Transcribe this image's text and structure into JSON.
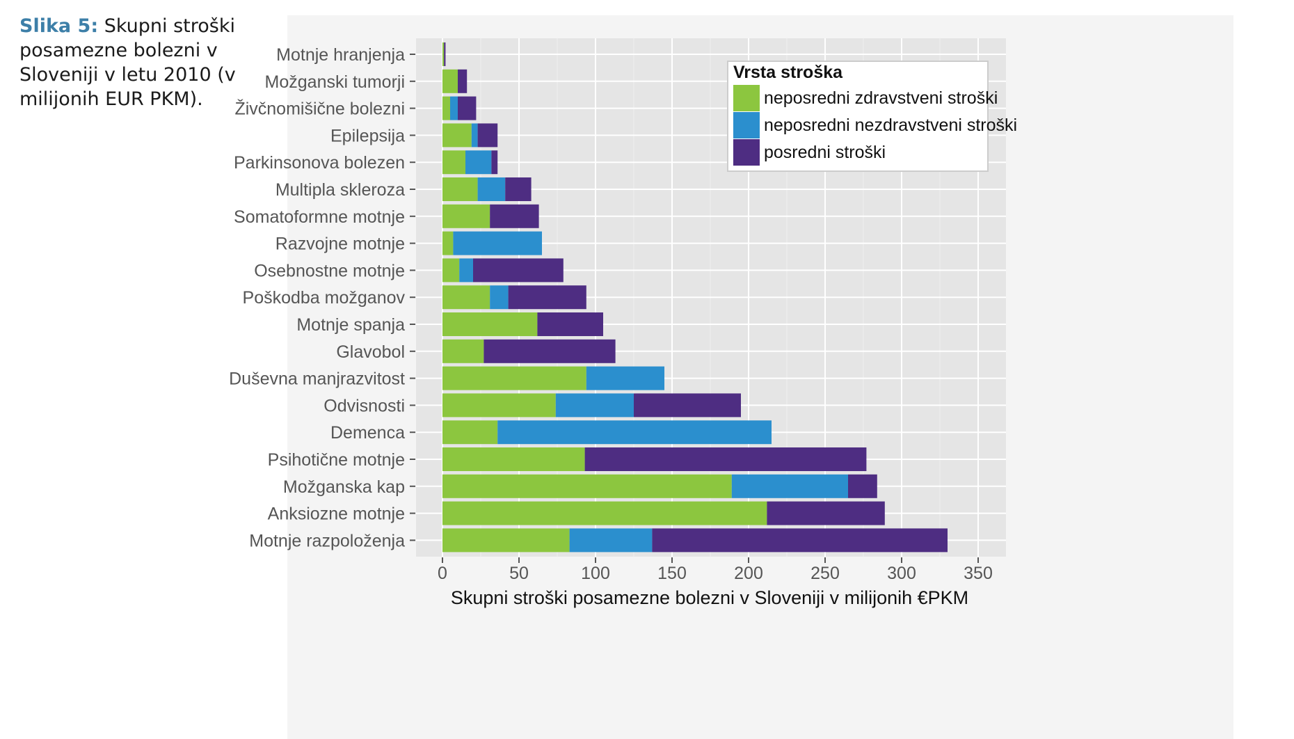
{
  "caption": {
    "label": "Slika 5:",
    "text": " Skupni stroški posamezne bolezni v Sloveniji v letu 2010 (v milijonih EUR PKM)."
  },
  "chart_data": {
    "type": "bar",
    "orientation": "horizontal",
    "stacked": true,
    "title": "",
    "xlabel": "Skupni stroški posamezne bolezni v Sloveniji v milijonih €PKM",
    "ylabel": "",
    "xlim": [
      0,
      365
    ],
    "xticks": [
      0,
      50,
      100,
      150,
      200,
      250,
      300,
      350
    ],
    "grid": true,
    "legend_position": "top-right",
    "legend_title": "Vrsta stroška",
    "categories": [
      "Motnje hranjenja",
      "Možganski tumorji",
      "Živčnomišične bolezni",
      "Epilepsija",
      "Parkinsonova bolezen",
      "Multipla skleroza",
      "Somatoformne motnje",
      "Razvojne motnje",
      "Osebnostne motnje",
      "Poškodba možganov",
      "Motnje spanja",
      "Glavobol",
      "Duševna manjrazvitost",
      "Odvisnosti",
      "Demenca",
      "Psihotične motnje",
      "Možganska kap",
      "Anksiozne motnje",
      "Motnje razpoloženja"
    ],
    "series": [
      {
        "name": "neposredni zdravstveni stroški",
        "color": "#8cc63f",
        "values": [
          1,
          10,
          5,
          19,
          15,
          23,
          31,
          7,
          11,
          31,
          62,
          27,
          94,
          74,
          36,
          93,
          189,
          212,
          83
        ]
      },
      {
        "name": "neposredni nezdravstveni stroški",
        "color": "#2b8fce",
        "values": [
          0,
          0,
          5,
          4,
          17,
          18,
          0,
          58,
          9,
          12,
          0,
          0,
          51,
          51,
          179,
          0,
          76,
          0,
          54
        ]
      },
      {
        "name": "posredni stroški",
        "color": "#4e2d82",
        "values": [
          1,
          6,
          12,
          13,
          4,
          17,
          32,
          0,
          59,
          51,
          43,
          86,
          0,
          70,
          0,
          184,
          19,
          77,
          193
        ]
      }
    ]
  }
}
